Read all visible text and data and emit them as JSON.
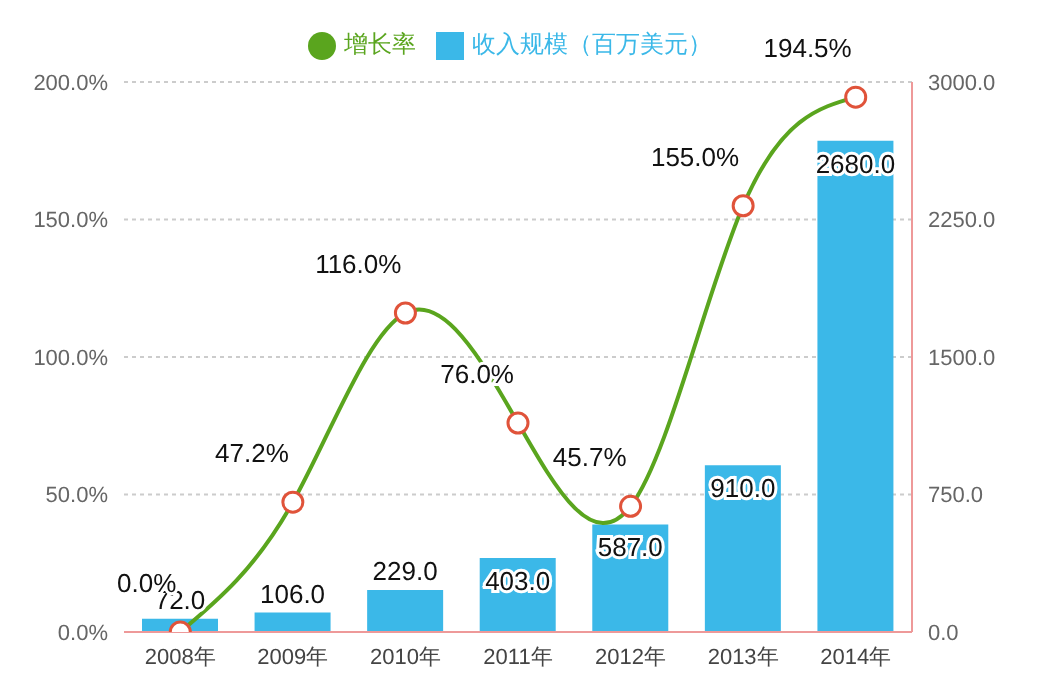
{
  "chart_data": {
    "type": "bar",
    "categories": [
      "2008年",
      "2009年",
      "2010年",
      "2011年",
      "2012年",
      "2013年",
      "2014年"
    ],
    "series": [
      {
        "name": "增长率",
        "type": "line",
        "color": "#5aa51e",
        "values": [
          0,
          47.2,
          116,
          76,
          45.7,
          155,
          194.5
        ],
        "value_labels": [
          "0.0%",
          "47.2%",
          "116.0%",
          "76.0%",
          "45.7%",
          "155.0%",
          "194.5%"
        ]
      },
      {
        "name": "收入规模（百万美元）",
        "axis": "y2",
        "color": "#3bb8e8",
        "values": [
          72,
          106,
          229,
          403,
          587,
          910,
          2680
        ],
        "value_labels": [
          "72.0",
          "106.0",
          "229.0",
          "403.0",
          "587.0",
          "910.0",
          "2680.0"
        ]
      }
    ],
    "ylim": [
      0,
      200
    ],
    "yticks": [
      {
        "value": 0,
        "label": "0.0%"
      },
      {
        "value": 50,
        "label": "50.0%"
      },
      {
        "value": 100,
        "label": "100.0%"
      },
      {
        "value": 150,
        "label": "150.0%"
      },
      {
        "value": 200,
        "label": "200.0%"
      }
    ],
    "y2lim": [
      0,
      3000
    ],
    "y2ticks": [
      {
        "value": 0,
        "label": "0.0"
      },
      {
        "value": 750,
        "label": "750.0"
      },
      {
        "value": 1500,
        "label": "1500.0"
      },
      {
        "value": 2250,
        "label": "2250.0"
      },
      {
        "value": 3000,
        "label": "3000.0"
      }
    ],
    "grid": "y",
    "legend": "top",
    "marker": "circle",
    "line_style": "solid"
  }
}
